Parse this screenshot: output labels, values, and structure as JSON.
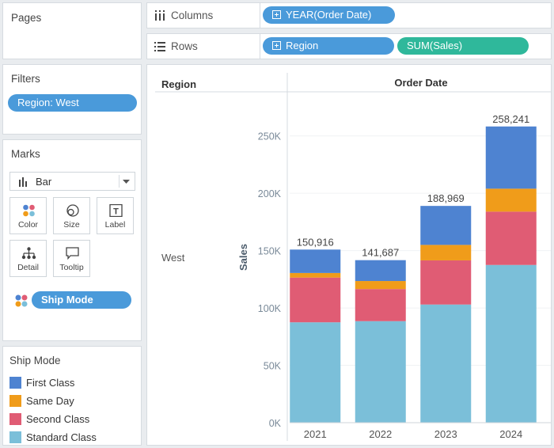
{
  "pages": {
    "title": "Pages"
  },
  "filters": {
    "title": "Filters",
    "pill": "Region: West"
  },
  "marks": {
    "title": "Marks",
    "mark_type": "Bar",
    "buttons": {
      "color": "Color",
      "size": "Size",
      "label": "Label",
      "detail": "Detail",
      "tooltip": "Tooltip"
    },
    "color_field": "Ship Mode"
  },
  "legend": {
    "title": "Ship Mode",
    "items": [
      {
        "label": "First Class",
        "color": "#4e83d1"
      },
      {
        "label": "Same Day",
        "color": "#f09c1a"
      },
      {
        "label": "Second Class",
        "color": "#e05c74"
      },
      {
        "label": "Standard Class",
        "color": "#7bbfd9"
      }
    ]
  },
  "shelves": {
    "columns_label": "Columns",
    "columns_pill": "YEAR(Order Date)",
    "rows_label": "Rows",
    "rows_pills": [
      "Region",
      "SUM(Sales)"
    ]
  },
  "view": {
    "region_header": "Region",
    "order_date_header": "Order Date",
    "region_value": "West"
  },
  "chart_data": {
    "type": "bar",
    "stacked": true,
    "categories": [
      "2021",
      "2022",
      "2023",
      "2024"
    ],
    "series": [
      {
        "name": "Standard Class",
        "color": "#7bbfd9",
        "values": [
          87500,
          88500,
          103000,
          137500
        ]
      },
      {
        "name": "Second Class",
        "color": "#e05c74",
        "values": [
          39000,
          28000,
          38500,
          46500
        ]
      },
      {
        "name": "Same Day",
        "color": "#f09c1a",
        "values": [
          4000,
          7000,
          13500,
          20000
        ]
      },
      {
        "name": "First Class",
        "color": "#4e83d1",
        "values": [
          20416,
          18187,
          33969,
          54241
        ]
      }
    ],
    "totals": [
      150916,
      141687,
      188969,
      258241
    ],
    "total_labels": [
      "150,916",
      "141,687",
      "188,969",
      "258,241"
    ],
    "ylabel": "Sales",
    "xlabel": "",
    "ylim": [
      0,
      285000
    ],
    "yticks": [
      0,
      50000,
      100000,
      150000,
      200000,
      250000
    ],
    "ytick_labels": [
      "0K",
      "50K",
      "100K",
      "150K",
      "200K",
      "250K"
    ]
  }
}
